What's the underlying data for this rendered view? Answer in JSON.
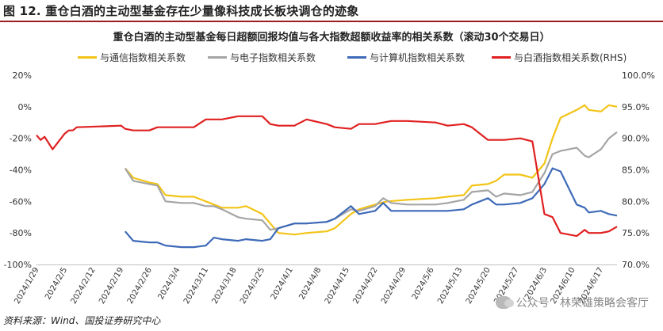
{
  "figure": {
    "title": "图 12. 重仓白酒的主动型基金存在少量像科技成长板块调仓的迹象",
    "source": "资料来源：Wind、国投证券研究中心",
    "watermark": "公众号 · 林荣雄策略会客厅"
  },
  "chart_data": {
    "type": "line",
    "title": "重仓白酒的主动型基金每日超额回报均值与各大指数超额收益率的相关系数（滚动30个交易日）",
    "x_ticks": [
      "2024/1/29",
      "2024/2/5",
      "2024/2/12",
      "2024/2/19",
      "2024/2/26",
      "2024/3/4",
      "2024/3/11",
      "2024/3/18",
      "2024/3/25",
      "2024/4/1",
      "2024/4/8",
      "2024/4/15",
      "2024/4/22",
      "2024/4/29",
      "2024/5/6",
      "2024/5/13",
      "2024/5/20",
      "2024/5/27",
      "2024/6/3",
      "2024/6/10",
      "2024/6/17"
    ],
    "x_range": [
      "2024/1/29",
      "2024/6/21"
    ],
    "y_left": {
      "range": [
        -1.0,
        0.2
      ],
      "ticks": [
        "20%",
        "0%",
        "-20%",
        "-40%",
        "-60%",
        "-80%",
        "-100%"
      ],
      "tick_values": [
        0.2,
        0,
        -0.2,
        -0.4,
        -0.6,
        -0.8,
        -1.0
      ]
    },
    "y_right": {
      "range": [
        0.7,
        1.0
      ],
      "ticks": [
        "100.0%",
        "95.0%",
        "90.0%",
        "85.0%",
        "80.0%",
        "75.0%",
        "70.0%"
      ],
      "tick_values": [
        1.0,
        0.95,
        0.9,
        0.85,
        0.8,
        0.75,
        0.7
      ]
    },
    "grid": false,
    "legend": "top",
    "series": [
      {
        "name": "与通信指数相关系数",
        "color": "#f2c418",
        "axis": "left",
        "points": [
          [
            "2024/2/20",
            -0.39
          ],
          [
            "2024/2/22",
            -0.45
          ],
          [
            "2024/2/26",
            -0.48
          ],
          [
            "2024/2/28",
            -0.49
          ],
          [
            "2024/3/1",
            -0.56
          ],
          [
            "2024/3/5",
            -0.57
          ],
          [
            "2024/3/8",
            -0.57
          ],
          [
            "2024/3/11",
            -0.6
          ],
          [
            "2024/3/13",
            -0.62
          ],
          [
            "2024/3/15",
            -0.64
          ],
          [
            "2024/3/19",
            -0.64
          ],
          [
            "2024/3/21",
            -0.63
          ],
          [
            "2024/3/25",
            -0.68
          ],
          [
            "2024/3/27",
            -0.74
          ],
          [
            "2024/3/29",
            -0.8
          ],
          [
            "2024/4/2",
            -0.81
          ],
          [
            "2024/4/5",
            -0.8
          ],
          [
            "2024/4/10",
            -0.79
          ],
          [
            "2024/4/12",
            -0.77
          ],
          [
            "2024/4/16",
            -0.68
          ],
          [
            "2024/4/18",
            -0.65
          ],
          [
            "2024/4/22",
            -0.62
          ],
          [
            "2024/4/25",
            -0.6
          ],
          [
            "2024/4/30",
            -0.59
          ],
          [
            "2024/5/7",
            -0.58
          ],
          [
            "2024/5/10",
            -0.57
          ],
          [
            "2024/5/14",
            -0.56
          ],
          [
            "2024/5/16",
            -0.5
          ],
          [
            "2024/5/20",
            -0.49
          ],
          [
            "2024/5/22",
            -0.47
          ],
          [
            "2024/5/24",
            -0.43
          ],
          [
            "2024/5/28",
            -0.43
          ],
          [
            "2024/5/31",
            -0.45
          ],
          [
            "2024/6/3",
            -0.36
          ],
          [
            "2024/6/5",
            -0.2
          ],
          [
            "2024/6/7",
            -0.07
          ],
          [
            "2024/6/11",
            -0.02
          ],
          [
            "2024/6/13",
            0.01
          ],
          [
            "2024/6/14",
            -0.02
          ],
          [
            "2024/6/17",
            -0.03
          ],
          [
            "2024/6/19",
            0.01
          ],
          [
            "2024/6/21",
            0.0
          ]
        ]
      },
      {
        "name": "与电子指数相关系数",
        "color": "#a5a5a5",
        "axis": "left",
        "points": [
          [
            "2024/2/20",
            -0.39
          ],
          [
            "2024/2/22",
            -0.47
          ],
          [
            "2024/2/26",
            -0.49
          ],
          [
            "2024/2/28",
            -0.5
          ],
          [
            "2024/3/1",
            -0.6
          ],
          [
            "2024/3/5",
            -0.61
          ],
          [
            "2024/3/8",
            -0.61
          ],
          [
            "2024/3/11",
            -0.63
          ],
          [
            "2024/3/13",
            -0.63
          ],
          [
            "2024/3/15",
            -0.65
          ],
          [
            "2024/3/19",
            -0.7
          ],
          [
            "2024/3/21",
            -0.71
          ],
          [
            "2024/3/25",
            -0.72
          ],
          [
            "2024/3/27",
            -0.78
          ],
          [
            "2024/3/29",
            -0.77
          ],
          [
            "2024/4/2",
            -0.74
          ],
          [
            "2024/4/5",
            -0.74
          ],
          [
            "2024/4/10",
            -0.73
          ],
          [
            "2024/4/12",
            -0.71
          ],
          [
            "2024/4/16",
            -0.65
          ],
          [
            "2024/4/18",
            -0.66
          ],
          [
            "2024/4/22",
            -0.63
          ],
          [
            "2024/4/24",
            -0.58
          ],
          [
            "2024/4/26",
            -0.61
          ],
          [
            "2024/4/30",
            -0.62
          ],
          [
            "2024/5/7",
            -0.62
          ],
          [
            "2024/5/10",
            -0.61
          ],
          [
            "2024/5/14",
            -0.59
          ],
          [
            "2024/5/16",
            -0.54
          ],
          [
            "2024/5/20",
            -0.53
          ],
          [
            "2024/5/22",
            -0.57
          ],
          [
            "2024/5/24",
            -0.55
          ],
          [
            "2024/5/28",
            -0.56
          ],
          [
            "2024/5/31",
            -0.54
          ],
          [
            "2024/6/3",
            -0.42
          ],
          [
            "2024/6/5",
            -0.3
          ],
          [
            "2024/6/7",
            -0.28
          ],
          [
            "2024/6/11",
            -0.26
          ],
          [
            "2024/6/13",
            -0.31
          ],
          [
            "2024/6/14",
            -0.32
          ],
          [
            "2024/6/17",
            -0.27
          ],
          [
            "2024/6/19",
            -0.2
          ],
          [
            "2024/6/21",
            -0.16
          ]
        ]
      },
      {
        "name": "与计算机指数相关系数",
        "color": "#3e6ab8",
        "axis": "left",
        "points": [
          [
            "2024/2/20",
            -0.79
          ],
          [
            "2024/2/22",
            -0.85
          ],
          [
            "2024/2/26",
            -0.86
          ],
          [
            "2024/2/28",
            -0.86
          ],
          [
            "2024/3/1",
            -0.88
          ],
          [
            "2024/3/5",
            -0.89
          ],
          [
            "2024/3/8",
            -0.89
          ],
          [
            "2024/3/11",
            -0.88
          ],
          [
            "2024/3/13",
            -0.83
          ],
          [
            "2024/3/15",
            -0.84
          ],
          [
            "2024/3/19",
            -0.85
          ],
          [
            "2024/3/21",
            -0.84
          ],
          [
            "2024/3/25",
            -0.85
          ],
          [
            "2024/3/27",
            -0.84
          ],
          [
            "2024/3/29",
            -0.77
          ],
          [
            "2024/4/2",
            -0.74
          ],
          [
            "2024/4/5",
            -0.74
          ],
          [
            "2024/4/10",
            -0.73
          ],
          [
            "2024/4/12",
            -0.71
          ],
          [
            "2024/4/16",
            -0.63
          ],
          [
            "2024/4/18",
            -0.68
          ],
          [
            "2024/4/22",
            -0.66
          ],
          [
            "2024/4/24",
            -0.61
          ],
          [
            "2024/4/26",
            -0.66
          ],
          [
            "2024/4/30",
            -0.66
          ],
          [
            "2024/5/7",
            -0.66
          ],
          [
            "2024/5/10",
            -0.66
          ],
          [
            "2024/5/14",
            -0.65
          ],
          [
            "2024/5/16",
            -0.62
          ],
          [
            "2024/5/20",
            -0.58
          ],
          [
            "2024/5/22",
            -0.62
          ],
          [
            "2024/5/24",
            -0.62
          ],
          [
            "2024/5/28",
            -0.61
          ],
          [
            "2024/5/31",
            -0.58
          ],
          [
            "2024/6/3",
            -0.49
          ],
          [
            "2024/6/5",
            -0.39
          ],
          [
            "2024/6/7",
            -0.41
          ],
          [
            "2024/6/11",
            -0.62
          ],
          [
            "2024/6/13",
            -0.64
          ],
          [
            "2024/6/14",
            -0.67
          ],
          [
            "2024/6/17",
            -0.66
          ],
          [
            "2024/6/19",
            -0.68
          ],
          [
            "2024/6/21",
            -0.69
          ]
        ]
      },
      {
        "name": "与白酒指数相关系数(RHS)",
        "color": "#e02020",
        "axis": "right",
        "points": [
          [
            "2024/1/29",
            0.905
          ],
          [
            "2024/1/30",
            0.8975
          ],
          [
            "2024/1/31",
            0.9025
          ],
          [
            "2024/2/1",
            0.8925
          ],
          [
            "2024/2/2",
            0.8825
          ],
          [
            "2024/2/5",
            0.9075
          ],
          [
            "2024/2/6",
            0.9125
          ],
          [
            "2024/2/7",
            0.9125
          ],
          [
            "2024/2/8",
            0.9175
          ],
          [
            "2024/2/19",
            0.92
          ],
          [
            "2024/2/20",
            0.915
          ],
          [
            "2024/2/22",
            0.9125
          ],
          [
            "2024/2/26",
            0.9125
          ],
          [
            "2024/2/28",
            0.9175
          ],
          [
            "2024/3/1",
            0.9175
          ],
          [
            "2024/3/5",
            0.9175
          ],
          [
            "2024/3/8",
            0.9175
          ],
          [
            "2024/3/11",
            0.93
          ],
          [
            "2024/3/13",
            0.93
          ],
          [
            "2024/3/15",
            0.93
          ],
          [
            "2024/3/19",
            0.935
          ],
          [
            "2024/3/21",
            0.935
          ],
          [
            "2024/3/25",
            0.935
          ],
          [
            "2024/3/27",
            0.9225
          ],
          [
            "2024/3/29",
            0.92
          ],
          [
            "2024/4/2",
            0.92
          ],
          [
            "2024/4/5",
            0.93
          ],
          [
            "2024/4/10",
            0.9225
          ],
          [
            "2024/4/12",
            0.9175
          ],
          [
            "2024/4/16",
            0.915
          ],
          [
            "2024/4/18",
            0.9225
          ],
          [
            "2024/4/22",
            0.9225
          ],
          [
            "2024/4/24",
            0.925
          ],
          [
            "2024/4/26",
            0.9275
          ],
          [
            "2024/4/30",
            0.9275
          ],
          [
            "2024/5/7",
            0.925
          ],
          [
            "2024/5/10",
            0.92
          ],
          [
            "2024/5/14",
            0.9225
          ],
          [
            "2024/5/16",
            0.9175
          ],
          [
            "2024/5/20",
            0.8975
          ],
          [
            "2024/5/22",
            0.8975
          ],
          [
            "2024/5/24",
            0.8975
          ],
          [
            "2024/5/28",
            0.9
          ],
          [
            "2024/5/31",
            0.895
          ],
          [
            "2024/6/3",
            0.78
          ],
          [
            "2024/6/5",
            0.775
          ],
          [
            "2024/6/7",
            0.75
          ],
          [
            "2024/6/11",
            0.745
          ],
          [
            "2024/6/13",
            0.755
          ],
          [
            "2024/6/14",
            0.75
          ],
          [
            "2024/6/17",
            0.75
          ],
          [
            "2024/6/19",
            0.7525
          ],
          [
            "2024/6/21",
            0.76
          ]
        ]
      }
    ]
  }
}
